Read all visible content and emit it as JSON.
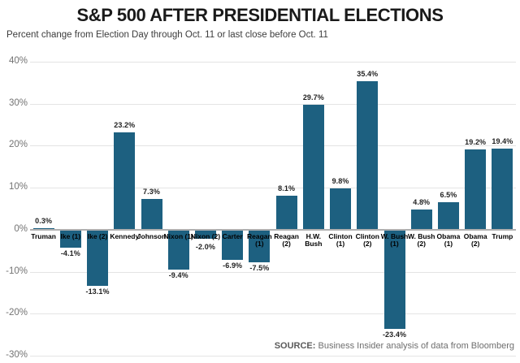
{
  "header": {
    "title": "S&P 500 AFTER PRESIDENTIAL ELECTIONS",
    "subtitle": "Percent change from Election Day through Oct. 11 or last close before Oct. 11"
  },
  "footer": {
    "source_label": "SOURCE:",
    "source_text": "Business Insider analysis of data from Bloomberg"
  },
  "colors": {
    "bar": "#1d6080",
    "gridline": "#e4e4e4",
    "zero_line": "#b0b0b0",
    "tick_label": "#737373",
    "title": "#1a1a1a",
    "subtitle": "#3c3c3c",
    "source": "#6e6e6e"
  },
  "chart_data": {
    "type": "bar",
    "title": "S&P 500 AFTER PRESIDENTIAL ELECTIONS",
    "subtitle": "Percent change from Election Day through Oct. 11 or last close before Oct. 11",
    "source": "SOURCE: Business Insider analysis of data from Bloomberg",
    "categories": [
      "Truman",
      "Ike (1)",
      "Ike (2)",
      "Kennedy",
      "Johnson",
      "Nixon (1)",
      "Nixon (2)",
      "Carter",
      "Reagan (1)",
      "Reagan (2)",
      "H.W. Bush",
      "Clinton (1)",
      "Clinton (2)",
      "W. Bush (1)",
      "W. Bush (2)",
      "Obama (1)",
      "Obama (2)",
      "Trump"
    ],
    "category_lines": [
      [
        "Truman"
      ],
      [
        "Ike (1)"
      ],
      [
        "Ike (2)"
      ],
      [
        "Kennedy"
      ],
      [
        "Johnson"
      ],
      [
        "Nixon (1)"
      ],
      [
        "Nixon (2)"
      ],
      [
        "Carter"
      ],
      [
        "Reagan",
        "(1)"
      ],
      [
        "Reagan",
        "(2)"
      ],
      [
        "H.W.",
        "Bush"
      ],
      [
        "Clinton",
        "(1)"
      ],
      [
        "Clinton",
        "(2)"
      ],
      [
        "W. Bush",
        "(1)"
      ],
      [
        "W. Bush",
        "(2)"
      ],
      [
        "Obama",
        "(1)"
      ],
      [
        "Obama",
        "(2)"
      ],
      [
        "Trump"
      ]
    ],
    "values": [
      0.3,
      -4.1,
      -13.1,
      23.2,
      7.3,
      -9.4,
      -2.0,
      -6.9,
      -7.5,
      8.1,
      29.7,
      9.8,
      35.4,
      -23.4,
      4.8,
      6.5,
      19.2,
      19.4
    ],
    "value_labels": [
      "0.3%",
      "-4.1%",
      "-13.1%",
      "23.2%",
      "7.3%",
      "-9.4%",
      "-2.0%",
      "-6.9%",
      "-7.5%",
      "8.1%",
      "29.7%",
      "9.8%",
      "35.4%",
      "-23.4%",
      "4.8%",
      "6.5%",
      "19.2%",
      "19.4%"
    ],
    "y_ticks": [
      40,
      30,
      20,
      10,
      0,
      -10,
      -20,
      -30
    ],
    "y_tick_labels": [
      "40%",
      "30%",
      "20%",
      "10%",
      "0%",
      "-10%",
      "-20%",
      "-30%"
    ],
    "ylim": [
      -30,
      40
    ],
    "xlabel": "",
    "ylabel": "",
    "grid": true,
    "legend": false,
    "bar_color": "#1d6080"
  }
}
